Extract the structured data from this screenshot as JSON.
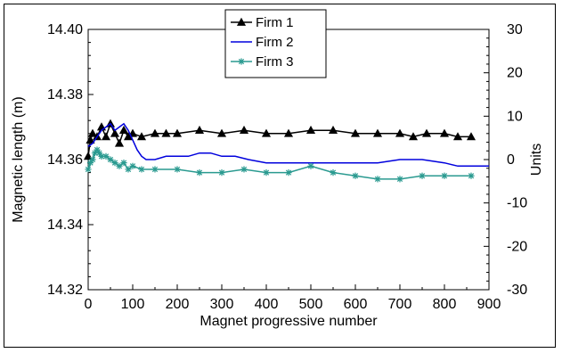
{
  "chart_data": {
    "type": "line",
    "title": "",
    "xlabel": "Magnet progressive number",
    "ylabel": "Magnetic length (m)",
    "y2label": "Units",
    "xlim": [
      0,
      900
    ],
    "ylim": [
      14.32,
      14.4
    ],
    "y2lim": [
      -30,
      30
    ],
    "x_ticks": [
      "0",
      "100",
      "200",
      "300",
      "400",
      "500",
      "600",
      "700",
      "800",
      "900"
    ],
    "y_ticks": [
      "14.32",
      "14.34",
      "14.36",
      "14.38",
      "14.40"
    ],
    "y2_ticks": [
      "-30",
      "-20",
      "-10",
      "0",
      "10",
      "20",
      "30"
    ],
    "grid": false,
    "legend_position": "top-center",
    "series": [
      {
        "name": "Firm 1",
        "color": "#000000",
        "marker": "triangle",
        "axis": "left",
        "x": [
          0,
          5,
          10,
          20,
          30,
          40,
          50,
          60,
          70,
          80,
          90,
          100,
          120,
          150,
          175,
          200,
          250,
          300,
          350,
          400,
          450,
          500,
          550,
          600,
          650,
          700,
          730,
          760,
          800,
          830,
          860
        ],
        "y": [
          14.361,
          14.366,
          14.368,
          14.367,
          14.37,
          14.367,
          14.371,
          14.368,
          14.365,
          14.369,
          14.367,
          14.368,
          14.367,
          14.368,
          14.368,
          14.368,
          14.369,
          14.368,
          14.369,
          14.368,
          14.368,
          14.369,
          14.369,
          14.368,
          14.368,
          14.368,
          14.367,
          14.368,
          14.368,
          14.367,
          14.367
        ]
      },
      {
        "name": "Firm 2",
        "color": "#0000dd",
        "marker": "none",
        "axis": "left",
        "x": [
          0,
          10,
          20,
          30,
          40,
          50,
          60,
          70,
          80,
          90,
          100,
          110,
          120,
          130,
          150,
          175,
          200,
          225,
          250,
          275,
          300,
          330,
          360,
          400,
          450,
          500,
          550,
          600,
          650,
          700,
          750,
          800,
          830,
          860,
          890,
          900
        ],
        "y": [
          14.364,
          14.365,
          14.367,
          14.369,
          14.37,
          14.371,
          14.369,
          14.37,
          14.371,
          14.369,
          14.366,
          14.363,
          14.361,
          14.36,
          14.36,
          14.361,
          14.361,
          14.361,
          14.362,
          14.362,
          14.361,
          14.361,
          14.36,
          14.359,
          14.359,
          14.359,
          14.359,
          14.359,
          14.359,
          14.36,
          14.36,
          14.359,
          14.358,
          14.358,
          14.358,
          14.358
        ]
      },
      {
        "name": "Firm 3",
        "color": "#2a9a90",
        "marker": "star",
        "axis": "left",
        "x": [
          0,
          5,
          10,
          15,
          20,
          25,
          30,
          40,
          50,
          60,
          70,
          80,
          90,
          100,
          120,
          150,
          200,
          250,
          300,
          350,
          400,
          450,
          500,
          550,
          600,
          650,
          700,
          750,
          800,
          860
        ],
        "y": [
          14.357,
          14.359,
          14.36,
          14.362,
          14.363,
          14.362,
          14.361,
          14.361,
          14.36,
          14.359,
          14.358,
          14.359,
          14.357,
          14.358,
          14.357,
          14.357,
          14.357,
          14.356,
          14.356,
          14.357,
          14.356,
          14.356,
          14.358,
          14.356,
          14.355,
          14.354,
          14.354,
          14.355,
          14.355,
          14.355
        ]
      }
    ]
  }
}
